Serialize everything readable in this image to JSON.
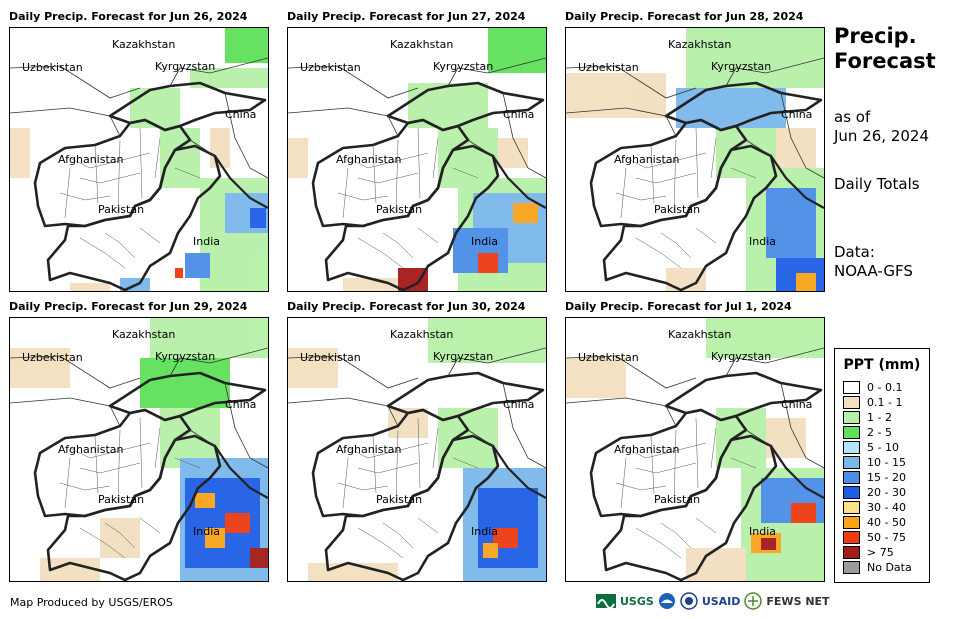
{
  "panels": [
    {
      "title": "Daily Precip. Forecast for Jun 26, 2024"
    },
    {
      "title": "Daily Precip. Forecast for Jun 27, 2024"
    },
    {
      "title": "Daily Precip. Forecast for Jun 28, 2024"
    },
    {
      "title": "Daily Precip. Forecast for Jun 29, 2024"
    },
    {
      "title": "Daily Precip. Forecast for Jun 30, 2024"
    },
    {
      "title": "Daily Precip. Forecast for Jul 1, 2024"
    }
  ],
  "map_labels": {
    "kazakhstan": "Kazakhstan",
    "uzbekistan": "Uzbekistan",
    "kyrgyzstan": "Kyrgyzstan",
    "china": "China",
    "afghanistan": "Afghanistan",
    "pakistan": "Pakistan",
    "india": "India"
  },
  "sidebar": {
    "title_line1": "Precip.",
    "title_line2": "Forecast",
    "asof_line1": "as of",
    "asof_line2": "Jun 26, 2024",
    "totals": "Daily Totals",
    "data_line1": "Data:",
    "data_line2": "NOAA-GFS"
  },
  "legend": {
    "title": "PPT (mm)",
    "items": [
      {
        "label": "0 - 0.1",
        "color": "#ffffff"
      },
      {
        "label": "0.1 - 1",
        "color": "#f3dfbf"
      },
      {
        "label": "1 - 2",
        "color": "#b6f1a8"
      },
      {
        "label": "2 - 5",
        "color": "#5fe05a"
      },
      {
        "label": "5 - 10",
        "color": "#b3e4f8"
      },
      {
        "label": "10 - 15",
        "color": "#7ab8ea"
      },
      {
        "label": "15 - 20",
        "color": "#4a8ee6"
      },
      {
        "label": "20 - 30",
        "color": "#1e5ee6"
      },
      {
        "label": "30 - 40",
        "color": "#f8e38a"
      },
      {
        "label": "40 - 50",
        "color": "#f9a31b"
      },
      {
        "label": "50 - 75",
        "color": "#ee3b12"
      },
      {
        "label": "> 75",
        "color": "#a51a1a"
      },
      {
        "label": "No Data",
        "color": "#9b9b9b"
      }
    ]
  },
  "footer": "Map Produced by USGS/EROS",
  "logos": {
    "usgs": "USGS",
    "usaid": "USAID",
    "fews": "FEWS NET"
  }
}
